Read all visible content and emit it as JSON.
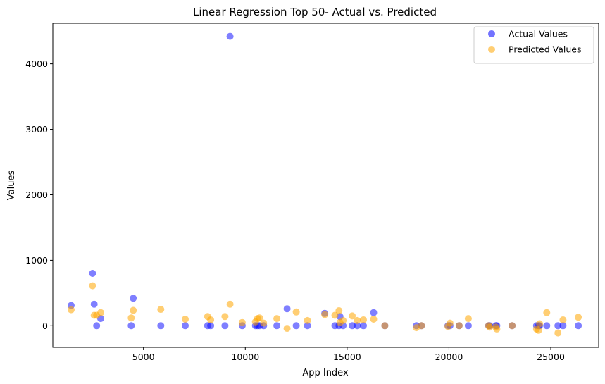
{
  "chart_data": {
    "type": "scatter",
    "title": "Linear Regression Top 50- Actual vs. Predicted",
    "xlabel": "App Index",
    "ylabel": "Values",
    "xlim": [
      550,
      27350
    ],
    "ylim": [
      -330,
      4620
    ],
    "xticks": [
      5000,
      10000,
      15000,
      20000,
      25000
    ],
    "yticks": [
      0,
      1000,
      2000,
      3000,
      4000
    ],
    "grid": false,
    "legend_position": "top-right",
    "x": [
      1450,
      2500,
      2580,
      2700,
      2900,
      4400,
      4500,
      5850,
      7050,
      8150,
      8300,
      9000,
      9250,
      9850,
      10500,
      10600,
      10700,
      10900,
      11550,
      12050,
      12500,
      13050,
      13900,
      14400,
      14600,
      14650,
      14800,
      15250,
      15500,
      15800,
      16300,
      16850,
      18400,
      18650,
      19950,
      20050,
      20500,
      20950,
      21950,
      22000,
      22300,
      22350,
      23100,
      24300,
      24400,
      24450,
      24800,
      25350,
      25600,
      26350
    ],
    "series": [
      {
        "name": "Actual Values",
        "color": "#0000ff",
        "values": [
          310,
          800,
          330,
          0,
          110,
          0,
          420,
          0,
          0,
          0,
          0,
          0,
          4420,
          0,
          0,
          0,
          0,
          0,
          0,
          260,
          0,
          0,
          190,
          0,
          0,
          140,
          0,
          0,
          0,
          0,
          200,
          0,
          0,
          0,
          0,
          0,
          0,
          0,
          0,
          0,
          0,
          0,
          0,
          0,
          0,
          0,
          0,
          0,
          0,
          0
        ]
      },
      {
        "name": "Predicted Values",
        "color": "#ffa500",
        "values": [
          245,
          610,
          160,
          160,
          200,
          120,
          235,
          250,
          100,
          140,
          90,
          140,
          330,
          50,
          60,
          110,
          120,
          40,
          110,
          -40,
          210,
          80,
          170,
          160,
          230,
          50,
          80,
          150,
          80,
          90,
          100,
          0,
          -30,
          0,
          -10,
          40,
          0,
          110,
          0,
          -20,
          -20,
          -50,
          0,
          -50,
          -70,
          30,
          200,
          -110,
          90,
          130
        ]
      }
    ]
  }
}
